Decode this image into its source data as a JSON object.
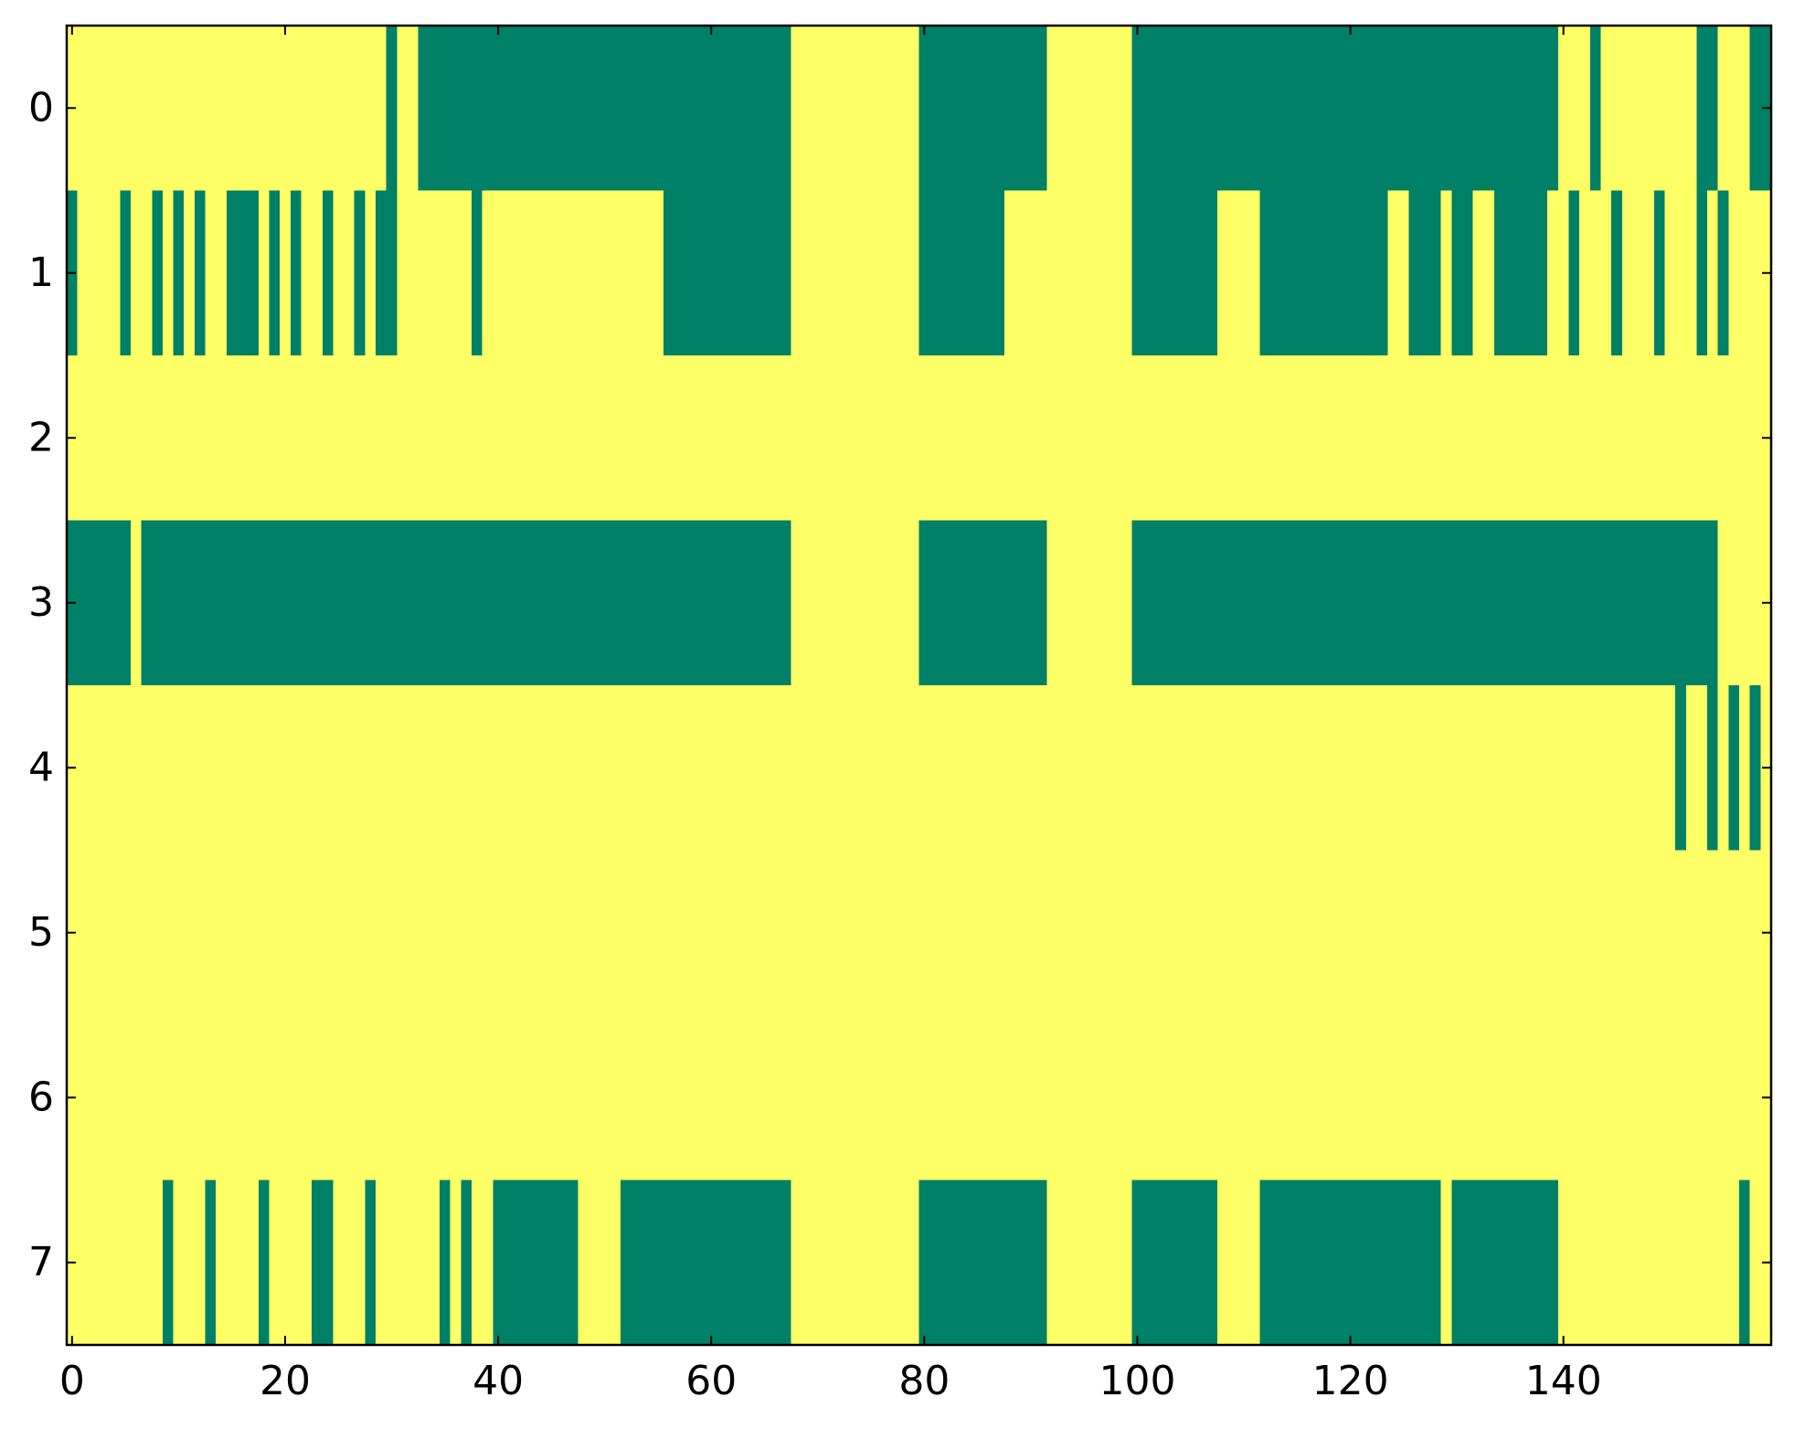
{
  "chart_data": {
    "type": "heatmap",
    "xlim": [
      -0.5,
      159.5
    ],
    "ylim": [
      7.5,
      -0.5
    ],
    "xticks": [
      0,
      20,
      40,
      60,
      80,
      100,
      120,
      140
    ],
    "yticks": [
      0,
      1,
      2,
      3,
      4,
      5,
      6,
      7
    ],
    "clim": [
      0,
      1
    ],
    "cmap": [
      "#008066",
      "#ffff66"
    ],
    "values": [
      [
        1,
        1,
        1,
        1,
        1,
        1,
        1,
        1,
        1,
        1,
        1,
        1,
        1,
        1,
        1,
        1,
        1,
        1,
        1,
        1,
        1,
        1,
        1,
        1,
        1,
        1,
        1,
        1,
        1,
        1,
        0,
        1,
        1,
        0,
        0,
        0,
        0,
        0,
        0,
        0,
        0,
        0,
        0,
        0,
        0,
        0,
        0,
        0,
        0,
        0,
        0,
        0,
        0,
        0,
        0,
        0,
        0,
        0,
        0,
        0,
        0,
        0,
        0,
        0,
        0,
        0,
        0,
        0,
        1,
        1,
        1,
        1,
        1,
        1,
        1,
        1,
        1,
        1,
        1,
        1,
        0,
        0,
        0,
        0,
        0,
        0,
        0,
        0,
        0,
        0,
        0,
        0,
        1,
        1,
        1,
        1,
        1,
        1,
        1,
        1,
        0,
        0,
        0,
        0,
        0,
        0,
        0,
        0,
        0,
        0,
        0,
        0,
        0,
        0,
        0,
        0,
        0,
        0,
        0,
        0,
        0,
        0,
        0,
        0,
        0,
        0,
        0,
        0,
        0,
        0,
        0,
        0,
        0,
        0,
        0,
        0,
        0,
        0,
        0,
        0,
        1,
        1,
        1,
        0,
        1,
        1,
        1,
        1,
        1,
        1,
        1,
        1,
        1,
        0,
        0,
        1,
        1,
        1,
        0,
        0
      ],
      [
        0,
        1,
        1,
        1,
        1,
        0,
        1,
        1,
        0,
        1,
        0,
        1,
        0,
        1,
        1,
        0,
        0,
        0,
        1,
        0,
        1,
        0,
        1,
        1,
        0,
        1,
        1,
        0,
        1,
        0,
        0,
        1,
        1,
        1,
        1,
        1,
        1,
        1,
        0,
        1,
        1,
        1,
        1,
        1,
        1,
        1,
        1,
        1,
        1,
        1,
        1,
        1,
        1,
        1,
        1,
        1,
        0,
        0,
        0,
        0,
        0,
        0,
        0,
        0,
        0,
        0,
        0,
        0,
        1,
        1,
        1,
        1,
        1,
        1,
        1,
        1,
        1,
        1,
        1,
        1,
        0,
        0,
        0,
        0,
        0,
        0,
        0,
        0,
        1,
        1,
        1,
        1,
        1,
        1,
        1,
        1,
        1,
        1,
        1,
        1,
        0,
        0,
        0,
        0,
        0,
        0,
        0,
        0,
        1,
        1,
        1,
        1,
        0,
        0,
        0,
        0,
        0,
        0,
        0,
        0,
        0,
        0,
        0,
        0,
        1,
        1,
        0,
        0,
        0,
        1,
        0,
        0,
        1,
        1,
        0,
        0,
        0,
        0,
        0,
        1,
        1,
        0,
        1,
        1,
        1,
        0,
        1,
        1,
        1,
        0,
        1,
        1,
        1,
        0,
        1,
        0,
        1,
        1,
        1,
        1
      ],
      [
        1,
        1,
        1,
        1,
        1,
        1,
        1,
        1,
        1,
        1,
        1,
        1,
        1,
        1,
        1,
        1,
        1,
        1,
        1,
        1,
        1,
        1,
        1,
        1,
        1,
        1,
        1,
        1,
        1,
        1,
        1,
        1,
        1,
        1,
        1,
        1,
        1,
        1,
        1,
        1,
        1,
        1,
        1,
        1,
        1,
        1,
        1,
        1,
        1,
        1,
        1,
        1,
        1,
        1,
        1,
        1,
        1,
        1,
        1,
        1,
        1,
        1,
        1,
        1,
        1,
        1,
        1,
        1,
        1,
        1,
        1,
        1,
        1,
        1,
        1,
        1,
        1,
        1,
        1,
        1,
        1,
        1,
        1,
        1,
        1,
        1,
        1,
        1,
        1,
        1,
        1,
        1,
        1,
        1,
        1,
        1,
        1,
        1,
        1,
        1,
        1,
        1,
        1,
        1,
        1,
        1,
        1,
        1,
        1,
        1,
        1,
        1,
        1,
        1,
        1,
        1,
        1,
        1,
        1,
        1,
        1,
        1,
        1,
        1,
        1,
        1,
        1,
        1,
        1,
        1,
        1,
        1,
        1,
        1,
        1,
        1,
        1,
        1,
        1,
        1,
        1,
        1,
        1,
        1,
        1,
        1,
        1,
        1,
        1,
        1,
        1,
        1,
        1,
        1,
        1,
        1,
        1,
        1,
        1,
        1
      ],
      [
        0,
        0,
        0,
        0,
        0,
        0,
        1,
        0,
        0,
        0,
        0,
        0,
        0,
        0,
        0,
        0,
        0,
        0,
        0,
        0,
        0,
        0,
        0,
        0,
        0,
        0,
        0,
        0,
        0,
        0,
        0,
        0,
        0,
        0,
        0,
        0,
        0,
        0,
        0,
        0,
        0,
        0,
        0,
        0,
        0,
        0,
        0,
        0,
        0,
        0,
        0,
        0,
        0,
        0,
        0,
        0,
        0,
        0,
        0,
        0,
        0,
        0,
        0,
        0,
        0,
        0,
        0,
        0,
        1,
        1,
        1,
        1,
        1,
        1,
        1,
        1,
        1,
        1,
        1,
        1,
        0,
        0,
        0,
        0,
        0,
        0,
        0,
        0,
        0,
        0,
        0,
        0,
        1,
        1,
        1,
        1,
        1,
        1,
        1,
        1,
        0,
        0,
        0,
        0,
        0,
        0,
        0,
        0,
        0,
        0,
        0,
        0,
        0,
        0,
        0,
        0,
        0,
        0,
        0,
        0,
        0,
        0,
        0,
        0,
        0,
        0,
        0,
        0,
        0,
        0,
        0,
        0,
        0,
        0,
        0,
        0,
        0,
        0,
        0,
        0,
        0,
        0,
        0,
        0,
        0,
        0,
        0,
        0,
        0,
        0,
        0,
        0,
        0,
        0,
        0,
        1,
        1,
        1,
        1,
        1
      ],
      [
        1,
        1,
        1,
        1,
        1,
        1,
        1,
        1,
        1,
        1,
        1,
        1,
        1,
        1,
        1,
        1,
        1,
        1,
        1,
        1,
        1,
        1,
        1,
        1,
        1,
        1,
        1,
        1,
        1,
        1,
        1,
        1,
        1,
        1,
        1,
        1,
        1,
        1,
        1,
        1,
        1,
        1,
        1,
        1,
        1,
        1,
        1,
        1,
        1,
        1,
        1,
        1,
        1,
        1,
        1,
        1,
        1,
        1,
        1,
        1,
        1,
        1,
        1,
        1,
        1,
        1,
        1,
        1,
        1,
        1,
        1,
        1,
        1,
        1,
        1,
        1,
        1,
        1,
        1,
        1,
        1,
        1,
        1,
        1,
        1,
        1,
        1,
        1,
        1,
        1,
        1,
        1,
        1,
        1,
        1,
        1,
        1,
        1,
        1,
        1,
        1,
        1,
        1,
        1,
        1,
        1,
        1,
        1,
        1,
        1,
        1,
        1,
        1,
        1,
        1,
        1,
        1,
        1,
        1,
        1,
        1,
        1,
        1,
        1,
        1,
        1,
        1,
        1,
        1,
        1,
        1,
        1,
        1,
        1,
        1,
        1,
        1,
        1,
        1,
        1,
        1,
        1,
        1,
        1,
        1,
        1,
        1,
        1,
        1,
        1,
        1,
        0,
        1,
        1,
        0,
        1,
        0,
        1,
        0,
        1
      ],
      [
        1,
        1,
        1,
        1,
        1,
        1,
        1,
        1,
        1,
        1,
        1,
        1,
        1,
        1,
        1,
        1,
        1,
        1,
        1,
        1,
        1,
        1,
        1,
        1,
        1,
        1,
        1,
        1,
        1,
        1,
        1,
        1,
        1,
        1,
        1,
        1,
        1,
        1,
        1,
        1,
        1,
        1,
        1,
        1,
        1,
        1,
        1,
        1,
        1,
        1,
        1,
        1,
        1,
        1,
        1,
        1,
        1,
        1,
        1,
        1,
        1,
        1,
        1,
        1,
        1,
        1,
        1,
        1,
        1,
        1,
        1,
        1,
        1,
        1,
        1,
        1,
        1,
        1,
        1,
        1,
        1,
        1,
        1,
        1,
        1,
        1,
        1,
        1,
        1,
        1,
        1,
        1,
        1,
        1,
        1,
        1,
        1,
        1,
        1,
        1,
        1,
        1,
        1,
        1,
        1,
        1,
        1,
        1,
        1,
        1,
        1,
        1,
        1,
        1,
        1,
        1,
        1,
        1,
        1,
        1,
        1,
        1,
        1,
        1,
        1,
        1,
        1,
        1,
        1,
        1,
        1,
        1,
        1,
        1,
        1,
        1,
        1,
        1,
        1,
        1,
        1,
        1,
        1,
        1,
        1,
        1,
        1,
        1,
        1,
        1,
        1,
        1,
        1,
        1,
        1,
        1,
        1,
        1,
        1,
        1
      ],
      [
        1,
        1,
        1,
        1,
        1,
        1,
        1,
        1,
        1,
        1,
        1,
        1,
        1,
        1,
        1,
        1,
        1,
        1,
        1,
        1,
        1,
        1,
        1,
        1,
        1,
        1,
        1,
        1,
        1,
        1,
        1,
        1,
        1,
        1,
        1,
        1,
        1,
        1,
        1,
        1,
        1,
        1,
        1,
        1,
        1,
        1,
        1,
        1,
        1,
        1,
        1,
        1,
        1,
        1,
        1,
        1,
        1,
        1,
        1,
        1,
        1,
        1,
        1,
        1,
        1,
        1,
        1,
        1,
        1,
        1,
        1,
        1,
        1,
        1,
        1,
        1,
        1,
        1,
        1,
        1,
        1,
        1,
        1,
        1,
        1,
        1,
        1,
        1,
        1,
        1,
        1,
        1,
        1,
        1,
        1,
        1,
        1,
        1,
        1,
        1,
        1,
        1,
        1,
        1,
        1,
        1,
        1,
        1,
        1,
        1,
        1,
        1,
        1,
        1,
        1,
        1,
        1,
        1,
        1,
        1,
        1,
        1,
        1,
        1,
        1,
        1,
        1,
        1,
        1,
        1,
        1,
        1,
        1,
        1,
        1,
        1,
        1,
        1,
        1,
        1,
        1,
        1,
        1,
        1,
        1,
        1,
        1,
        1,
        1,
        1,
        1,
        1,
        1,
        1,
        1,
        1,
        1,
        1,
        1,
        1
      ],
      [
        1,
        1,
        1,
        1,
        1,
        1,
        1,
        1,
        1,
        0,
        1,
        1,
        1,
        0,
        1,
        1,
        1,
        1,
        0,
        1,
        1,
        1,
        1,
        0,
        0,
        1,
        1,
        1,
        0,
        1,
        1,
        1,
        1,
        1,
        1,
        0,
        1,
        0,
        1,
        1,
        0,
        0,
        0,
        0,
        0,
        0,
        0,
        0,
        1,
        1,
        1,
        1,
        0,
        0,
        0,
        0,
        0,
        0,
        0,
        0,
        0,
        0,
        0,
        0,
        0,
        0,
        0,
        0,
        1,
        1,
        1,
        1,
        1,
        1,
        1,
        1,
        1,
        1,
        1,
        1,
        0,
        0,
        0,
        0,
        0,
        0,
        0,
        0,
        0,
        0,
        0,
        0,
        1,
        1,
        1,
        1,
        1,
        1,
        1,
        1,
        0,
        0,
        0,
        0,
        0,
        0,
        0,
        0,
        1,
        1,
        1,
        1,
        0,
        0,
        0,
        0,
        0,
        0,
        0,
        0,
        0,
        0,
        0,
        0,
        0,
        0,
        0,
        0,
        0,
        1,
        0,
        0,
        0,
        0,
        0,
        0,
        0,
        0,
        0,
        0,
        1,
        1,
        1,
        1,
        1,
        1,
        1,
        1,
        1,
        1,
        1,
        1,
        1,
        1,
        1,
        1,
        1,
        0,
        1,
        1
      ]
    ]
  }
}
